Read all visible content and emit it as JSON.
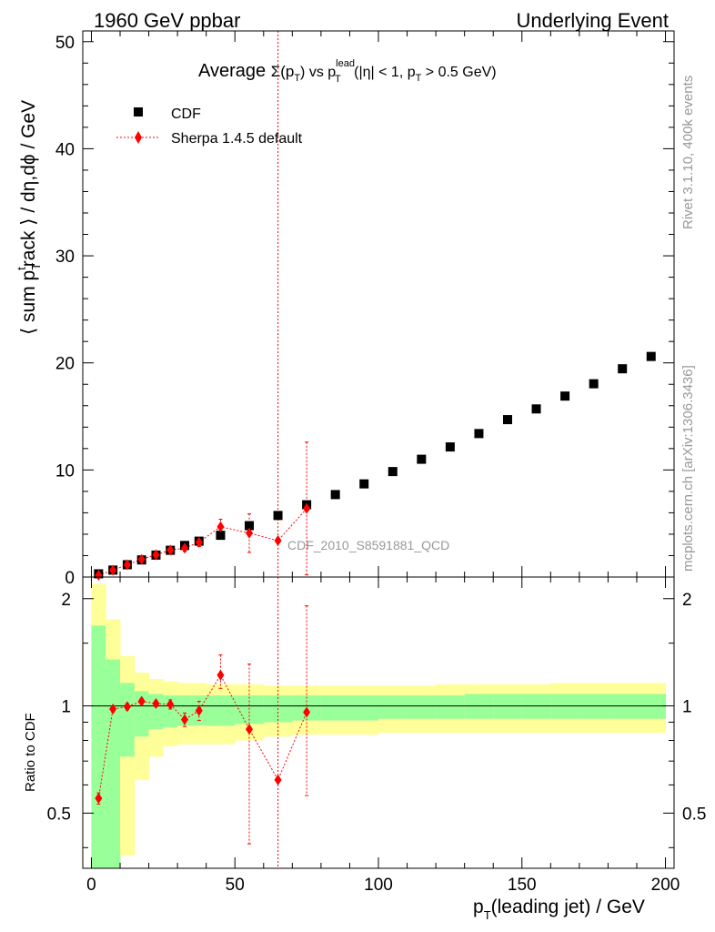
{
  "header": {
    "left": "1960 GeV ppbar",
    "right": "Underlying Event"
  },
  "plot_title": {
    "prefix": "Average ",
    "sigma": "Σ(p",
    "sigma_sub": "T",
    "mid": ") vs p",
    "lead_sup": "lead",
    "lead_sub": "T",
    "tail": " (|η| < 1, p",
    "tail_sub": "T",
    "end": " > 0.5 GeV)"
  },
  "side_labels": {
    "rivet": "Rivet 3.1.10,  400k events",
    "mcplots": "mcplots.cern.ch [arXiv:1306.3436]"
  },
  "analysis_tag": "CDF_2010_S8591881_QCD",
  "axes": {
    "ylabel_main": {
      "a": "⟨ sum p",
      "sub": "T",
      "sup": "t",
      "b": "rack ⟩ / dη,dϕ / GeV"
    },
    "ylabel_ratio": "Ratio to CDF",
    "xlabel": {
      "a": "p",
      "sub": "T",
      "b": "(leading jet) / GeV"
    }
  },
  "legend": [
    {
      "label": "CDF",
      "marker": "square",
      "color": "#000000"
    },
    {
      "label": "Sherpa 1.4.5 default",
      "marker": "diamond",
      "color": "#ff0000"
    }
  ],
  "colors": {
    "data": "#000000",
    "mc": "#ff0000",
    "band_inner": "#99ff99",
    "band_outer": "#ffff99"
  },
  "chart_data": [
    {
      "type": "scatter",
      "panel": "main",
      "xlim": [
        -3,
        203
      ],
      "ylim": [
        0,
        51
      ],
      "x_ticks": [
        0,
        50,
        100,
        150,
        200
      ],
      "y_ticks": [
        0,
        10,
        20,
        30,
        40,
        50
      ],
      "series": [
        {
          "name": "CDF",
          "x": [
            2.5,
            7.5,
            12.5,
            17.5,
            22.5,
            27.5,
            32.5,
            37.5,
            45,
            55,
            65,
            75,
            85,
            95,
            105,
            115,
            125,
            135,
            145,
            155,
            165,
            175,
            185,
            195
          ],
          "y": [
            0.3,
            0.65,
            1.15,
            1.6,
            2.05,
            2.5,
            2.95,
            3.35,
            3.9,
            4.8,
            5.75,
            6.75,
            7.7,
            8.7,
            9.85,
            11.0,
            12.15,
            13.4,
            14.7,
            15.7,
            16.9,
            18.05,
            19.45,
            20.6
          ]
        },
        {
          "name": "Sherpa 1.4.5 default",
          "x": [
            2.5,
            7.5,
            12.5,
            17.5,
            22.5,
            27.5,
            32.5,
            37.5,
            45,
            55,
            65,
            75
          ],
          "y": [
            0.17,
            0.64,
            1.15,
            1.65,
            2.08,
            2.52,
            2.7,
            3.25,
            4.7,
            4.1,
            3.4,
            6.4
          ],
          "err": [
            0.05,
            0.08,
            0.1,
            0.12,
            0.15,
            0.2,
            0.3,
            0.4,
            0.7,
            1.8,
            50,
            6.2
          ]
        }
      ]
    },
    {
      "type": "scatter",
      "panel": "ratio",
      "ylabel": "Ratio to CDF",
      "xlim": [
        -3,
        203
      ],
      "ylim": [
        0.35,
        2.3
      ],
      "y_ticks": [
        0.5,
        1,
        2
      ],
      "reference": 1,
      "band_edges": [
        0,
        5,
        10,
        15,
        20,
        25,
        30,
        35,
        40,
        50,
        60,
        70,
        80,
        90,
        100,
        110,
        120,
        130,
        140,
        150,
        160,
        170,
        180,
        190,
        200
      ],
      "band_inner_lo": [
        0,
        0.3,
        0.72,
        0.82,
        0.86,
        0.87,
        0.88,
        0.88,
        0.88,
        0.89,
        0.9,
        0.91,
        0.91,
        0.91,
        0.92,
        0.92,
        0.92,
        0.92,
        0.92,
        0.92,
        0.92,
        0.92,
        0.92,
        0.92
      ],
      "band_inner_hi": [
        1.68,
        1.35,
        1.16,
        1.1,
        1.08,
        1.07,
        1.07,
        1.07,
        1.07,
        1.07,
        1.07,
        1.07,
        1.07,
        1.07,
        1.07,
        1.07,
        1.07,
        1.08,
        1.08,
        1.08,
        1.08,
        1.08,
        1.08,
        1.08
      ],
      "band_outer_lo": [
        0,
        0,
        0.38,
        0.62,
        0.72,
        0.77,
        0.78,
        0.78,
        0.78,
        0.8,
        0.82,
        0.83,
        0.83,
        0.83,
        0.84,
        0.84,
        0.84,
        0.84,
        0.84,
        0.84,
        0.84,
        0.84,
        0.84,
        0.84
      ],
      "band_outer_hi": [
        2.2,
        1.75,
        1.38,
        1.24,
        1.19,
        1.17,
        1.16,
        1.16,
        1.15,
        1.15,
        1.14,
        1.14,
        1.14,
        1.14,
        1.14,
        1.14,
        1.15,
        1.15,
        1.15,
        1.15,
        1.16,
        1.16,
        1.16,
        1.16
      ],
      "series": [
        {
          "name": "Sherpa 1.4.5 default",
          "x": [
            2.5,
            7.5,
            12.5,
            17.5,
            22.5,
            27.5,
            32.5,
            37.5,
            45,
            55,
            65,
            75
          ],
          "y": [
            0.55,
            0.98,
            0.995,
            1.03,
            1.015,
            1.01,
            0.915,
            0.97,
            1.22,
            0.86,
            0.62,
            0.96
          ],
          "err_lo": [
            0.02,
            0.02,
            0.02,
            0.02,
            0.02,
            0.03,
            0.04,
            0.06,
            0.1,
            0.45,
            0.3,
            0.4
          ],
          "err_hi": [
            0.02,
            0.02,
            0.02,
            0.02,
            0.02,
            0.03,
            0.04,
            0.06,
            0.17,
            0.45,
            2.0,
            0.95
          ]
        }
      ]
    }
  ]
}
